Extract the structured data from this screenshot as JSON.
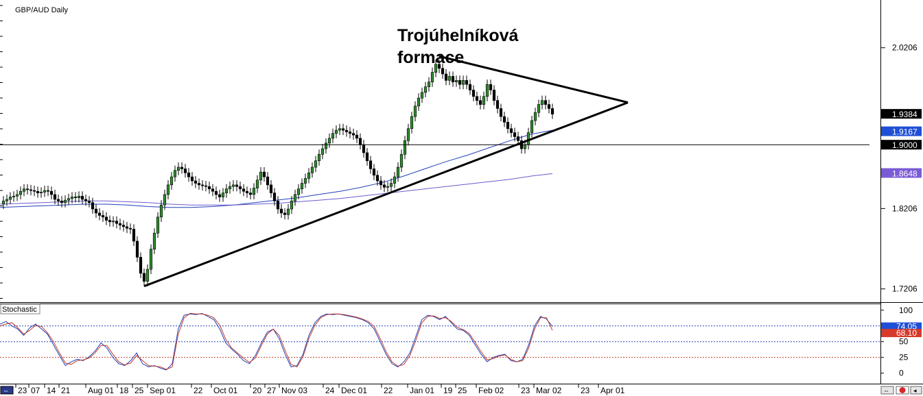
{
  "chart_data": [
    {
      "type": "candlestick",
      "ticker": "GBP/AUD Daily",
      "annotation": [
        "Trojúhelníková",
        "formace"
      ],
      "y_ticks": [
        "2.0206",
        "1.8206",
        "1.7206"
      ],
      "y_tick_values": [
        2.0206,
        1.8206,
        1.7206
      ],
      "ylim": [
        1.705,
        2.08
      ],
      "price_badges": [
        {
          "label": "1.9384",
          "value": 1.9384,
          "color": "#000000"
        },
        {
          "label": "1.9167",
          "value": 1.9167,
          "color": "#1f4fd6"
        },
        {
          "label": "1.9000",
          "value": 1.9,
          "color": "#000000"
        },
        {
          "label": "1.8648",
          "value": 1.8648,
          "color": "#7a5bd6"
        }
      ],
      "horizontal_line": 1.9,
      "x_labels": [
        "23",
        "07",
        "14",
        "21",
        "Aug 01",
        "18",
        "25",
        "Sep 01",
        "22",
        "Oct 01",
        "20",
        "27",
        "Nov 03",
        "24",
        "Dec 01",
        "22",
        "Jan 01",
        "19",
        "25",
        "Feb 02",
        "23",
        "Mar 02",
        "23",
        "Apr 01"
      ],
      "close_series": [
        1.83,
        1.832,
        1.835,
        1.836,
        1.838,
        1.842,
        1.845,
        1.844,
        1.843,
        1.842,
        1.84,
        1.841,
        1.843,
        1.842,
        1.838,
        1.832,
        1.83,
        1.828,
        1.831,
        1.833,
        1.835,
        1.834,
        1.836,
        1.832,
        1.83,
        1.828,
        1.82,
        1.815,
        1.812,
        1.81,
        1.806,
        1.804,
        1.805,
        1.802,
        1.8,
        1.798,
        1.796,
        1.795,
        1.78,
        1.76,
        1.74,
        1.73,
        1.745,
        1.77,
        1.79,
        1.81,
        1.825,
        1.838,
        1.85,
        1.86,
        1.868,
        1.872,
        1.87,
        1.865,
        1.86,
        1.855,
        1.852,
        1.85,
        1.849,
        1.848,
        1.845,
        1.842,
        1.838,
        1.835,
        1.84,
        1.845,
        1.848,
        1.85,
        1.848,
        1.845,
        1.842,
        1.84,
        1.838,
        1.846,
        1.856,
        1.866,
        1.86,
        1.85,
        1.84,
        1.83,
        1.82,
        1.815,
        1.813,
        1.82,
        1.83,
        1.838,
        1.845,
        1.852,
        1.858,
        1.865,
        1.872,
        1.88,
        1.888,
        1.895,
        1.902,
        1.908,
        1.914,
        1.918,
        1.92,
        1.918,
        1.916,
        1.914,
        1.912,
        1.908,
        1.9,
        1.89,
        1.88,
        1.87,
        1.862,
        1.855,
        1.85,
        1.847,
        1.848,
        1.852,
        1.86,
        1.872,
        1.888,
        1.905,
        1.92,
        1.935,
        1.948,
        1.958,
        1.965,
        1.972,
        1.978,
        1.99,
        2.0,
        1.995,
        1.988,
        1.98,
        1.985,
        1.978,
        1.98,
        1.975,
        1.98,
        1.975,
        1.968,
        1.96,
        1.955,
        1.95,
        1.96,
        1.975,
        1.968,
        1.955,
        1.945,
        1.935,
        1.928,
        1.92,
        1.915,
        1.91,
        1.905,
        1.895,
        1.9,
        1.915,
        1.93,
        1.94,
        1.95,
        1.955,
        1.95,
        1.945,
        1.938
      ],
      "series": [
        {
          "name": "",
          "color": "#1f3fb8",
          "values": [
            1.822,
            1.823,
            1.824,
            1.825,
            1.826,
            1.826,
            1.825,
            1.823,
            1.822,
            1.822,
            1.823,
            1.825,
            1.828,
            1.831,
            1.834,
            1.838,
            1.842,
            1.847,
            1.853,
            1.861,
            1.87,
            1.879,
            1.887,
            1.896,
            1.905,
            1.913,
            1.918
          ]
        },
        {
          "name": "",
          "color": "#6a5acd",
          "values": [
            1.826,
            1.827,
            1.828,
            1.829,
            1.83,
            1.83,
            1.829,
            1.828,
            1.826,
            1.825,
            1.825,
            1.825,
            1.826,
            1.827,
            1.829,
            1.831,
            1.833,
            1.836,
            1.839,
            1.842,
            1.845,
            1.848,
            1.851,
            1.854,
            1.857,
            1.861,
            1.864
          ]
        }
      ],
      "trendlines": [
        {
          "name": "upper",
          "points": [
            [
              127,
              2.01
            ],
            [
              182,
              1.9525
            ]
          ]
        },
        {
          "name": "lower",
          "points": [
            [
              41,
              1.724
            ],
            [
              182,
              1.9525
            ]
          ]
        }
      ]
    },
    {
      "type": "line",
      "indicator": "Stochastic",
      "y_ticks": [
        "100",
        "50",
        "25",
        "0"
      ],
      "y_tick_values": [
        100,
        50,
        25,
        0
      ],
      "ylim": [
        -8,
        103
      ],
      "levels": [
        {
          "value": 75,
          "color": "#1f3fb8"
        },
        {
          "value": 50,
          "color": "#1f3fb8"
        },
        {
          "value": 25,
          "color": "#c0392b"
        }
      ],
      "value_badges": [
        {
          "label": "74.05",
          "value": 74.05,
          "color": "#1f4fd6"
        },
        {
          "label": "68.10",
          "value": 68.1,
          "color": "#d63a2a"
        }
      ],
      "series": [
        {
          "name": "",
          "color": "#1f3fb8",
          "values": [
            78,
            82,
            75,
            70,
            60,
            72,
            78,
            70,
            62,
            45,
            28,
            12,
            18,
            22,
            20,
            26,
            35,
            48,
            40,
            25,
            15,
            12,
            20,
            32,
            15,
            10,
            12,
            8,
            5,
            15,
            70,
            92,
            94,
            93,
            95,
            90,
            85,
            70,
            48,
            38,
            30,
            20,
            15,
            28,
            48,
            65,
            70,
            55,
            30,
            10,
            12,
            30,
            60,
            80,
            90,
            94,
            93,
            94,
            92,
            90,
            88,
            85,
            80,
            70,
            50,
            30,
            15,
            10,
            18,
            32,
            58,
            85,
            92,
            90,
            85,
            90,
            80,
            70,
            68,
            60,
            45,
            30,
            18,
            25,
            28,
            30,
            20,
            18,
            22,
            45,
            75,
            90,
            86,
            74
          ]
        },
        {
          "name": "",
          "color": "#c0392b",
          "values": [
            75,
            78,
            80,
            72,
            62,
            68,
            76,
            74,
            64,
            50,
            32,
            16,
            14,
            20,
            21,
            24,
            32,
            44,
            44,
            30,
            18,
            13,
            16,
            28,
            20,
            12,
            11,
            10,
            6,
            10,
            62,
            88,
            95,
            94,
            94,
            92,
            88,
            76,
            54,
            40,
            32,
            24,
            17,
            24,
            44,
            62,
            70,
            60,
            36,
            14,
            10,
            26,
            55,
            76,
            88,
            93,
            94,
            94,
            93,
            91,
            89,
            86,
            82,
            74,
            55,
            34,
            18,
            11,
            14,
            28,
            52,
            80,
            90,
            91,
            87,
            88,
            82,
            73,
            69,
            63,
            49,
            34,
            21,
            23,
            27,
            29,
            22,
            18,
            20,
            40,
            70,
            88,
            88,
            68
          ]
        }
      ]
    }
  ],
  "toolbar": {
    "left_button": "⇔",
    "right_buttons": [
      "⇔",
      "Ⓟ",
      "◂"
    ]
  }
}
